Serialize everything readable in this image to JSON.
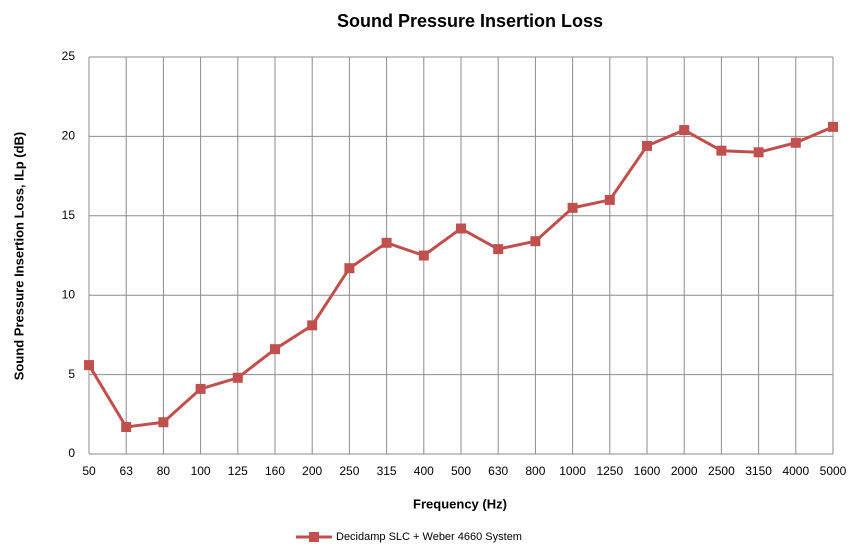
{
  "chart_data": {
    "type": "line",
    "title": "Sound Pressure Insertion Loss",
    "x_label": "Frequency (Hz)",
    "y_label": "Sound Pressure Insertion Loss, ILp (dB)",
    "categories": [
      "50",
      "63",
      "80",
      "100",
      "125",
      "160",
      "200",
      "250",
      "315",
      "400",
      "500",
      "630",
      "800",
      "1000",
      "1250",
      "1600",
      "2000",
      "2500",
      "3150",
      "4000",
      "5000"
    ],
    "series": [
      {
        "name": "Decidamp SLC + Weber 4660 System",
        "color": "#c0504d",
        "values": [
          5.6,
          1.7,
          2.0,
          4.1,
          4.8,
          6.6,
          8.1,
          11.7,
          13.3,
          12.5,
          14.2,
          12.9,
          13.4,
          15.5,
          16.0,
          19.4,
          20.4,
          19.1,
          19.0,
          19.6,
          20.6
        ]
      }
    ],
    "ylim": [
      0,
      25
    ],
    "yticks": [
      0,
      5,
      10,
      15,
      20,
      25
    ],
    "grid": true,
    "legend": "bottom"
  }
}
